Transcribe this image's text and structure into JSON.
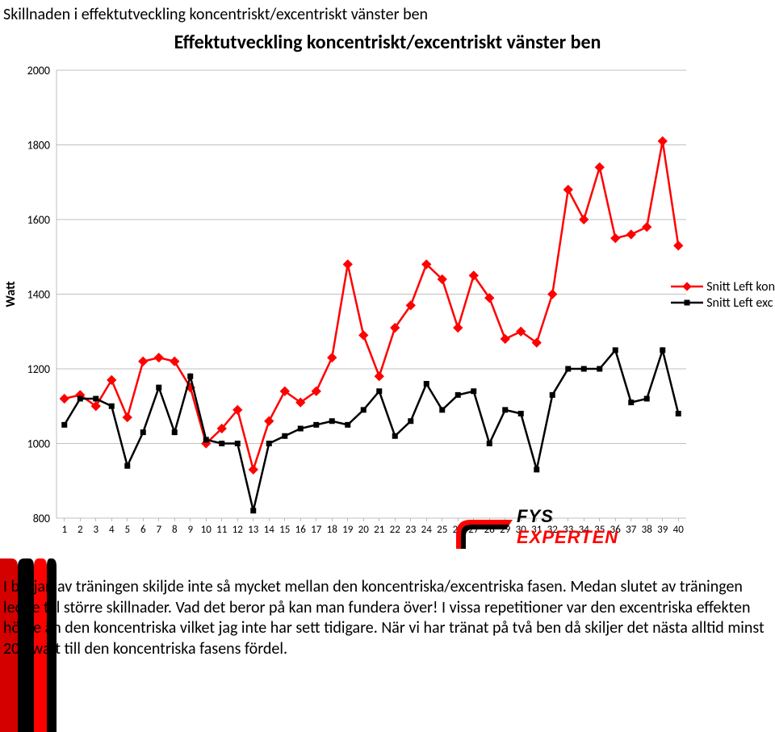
{
  "page_title": "Skillnaden i effektutveckling koncentriskt/excentriskt vänster ben",
  "chart": {
    "type": "line",
    "title": "Effektutveckling koncentriskt/excentriskt vänster ben",
    "title_fontsize": 24,
    "ylabel": "Watt",
    "ylabel_fontsize": 16,
    "xlim": [
      1,
      40
    ],
    "ylim": [
      800,
      2000
    ],
    "ytick_step": 200,
    "yticks": [
      800,
      1000,
      1200,
      1400,
      1600,
      1800,
      2000
    ],
    "xticks": [
      1,
      2,
      3,
      4,
      5,
      6,
      7,
      8,
      9,
      10,
      11,
      12,
      13,
      14,
      15,
      16,
      17,
      18,
      19,
      20,
      21,
      22,
      23,
      24,
      25,
      26,
      27,
      28,
      29,
      30,
      31,
      32,
      33,
      34,
      35,
      36,
      37,
      38,
      39,
      40
    ],
    "background_color": "#ffffff",
    "grid_color": "#808080",
    "grid_linewidth": 0.5,
    "legend_position": "right-middle",
    "series": [
      {
        "name": "Snitt Left kon",
        "color": "#ff0000",
        "marker": "diamond",
        "marker_size": 8,
        "line_width": 2.5,
        "values": [
          1120,
          1130,
          1100,
          1170,
          1070,
          1220,
          1230,
          1220,
          1150,
          1000,
          1040,
          1090,
          930,
          1060,
          1140,
          1110,
          1140,
          1230,
          1480,
          1290,
          1180,
          1310,
          1370,
          1480,
          1440,
          1310,
          1450,
          1390,
          1280,
          1300,
          1270,
          1400,
          1680,
          1600,
          1740,
          1550,
          1560,
          1580,
          1810,
          1530
        ]
      },
      {
        "name": "Snitt Left exc",
        "color": "#000000",
        "marker": "square",
        "marker_size": 7,
        "line_width": 2.5,
        "values": [
          1050,
          1120,
          1120,
          1100,
          940,
          1030,
          1150,
          1030,
          1180,
          1010,
          1000,
          1000,
          820,
          1000,
          1020,
          1040,
          1050,
          1060,
          1050,
          1090,
          1140,
          1020,
          1060,
          1160,
          1090,
          1130,
          1140,
          1000,
          1090,
          1080,
          930,
          1130,
          1200,
          1200,
          1200,
          1250,
          1110,
          1120,
          1250,
          1080
        ]
      }
    ]
  },
  "legend": {
    "items": [
      "Snitt Left kon",
      "Snitt Left exc"
    ]
  },
  "logo": {
    "line1": "FYS",
    "line2": "EXPERTEN",
    "main_color": "#ff0000",
    "sub_color": "#000000",
    "stripe_colors": [
      "#d40000",
      "#000000",
      "#ff0000",
      "#000000"
    ]
  },
  "body_text": "I början av träningen skiljde inte så mycket mellan den koncentriska/excentriska fasen. Medan slutet av träningen ledde till större skillnader. Vad det beror på kan man fundera över! I vissa repetitioner var den excentriska effekten högre än den koncentriska vilket jag inte har sett tidigare. När vi har tränat på två ben då skiljer det nästa alltid minst 200 watt till den koncentriska fasens fördel."
}
